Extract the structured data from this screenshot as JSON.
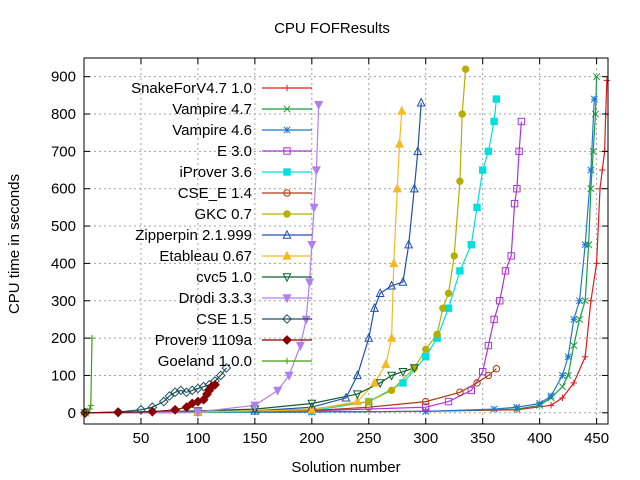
{
  "chart_data": {
    "type": "line",
    "title": "CPU FOFResults",
    "xlabel": "Solution number",
    "ylabel": "CPU time in seconds",
    "xlim": [
      0,
      460
    ],
    "ylim": [
      -30,
      950
    ],
    "xticks": [
      50,
      100,
      150,
      200,
      250,
      300,
      350,
      400,
      450
    ],
    "yticks": [
      0,
      100,
      200,
      300,
      400,
      500,
      600,
      700,
      800,
      900
    ],
    "grid": true,
    "legend_position": "top-left",
    "series": [
      {
        "name": "SnakeForV4.7 1.0",
        "color": "#e41a1c",
        "marker": "plus",
        "x": [
          1,
          100,
          200,
          300,
          380,
          410,
          420,
          430,
          440,
          445,
          450,
          453,
          455,
          457,
          458,
          459
        ],
        "y": [
          0,
          1,
          2,
          4,
          8,
          20,
          40,
          80,
          150,
          300,
          400,
          600,
          650,
          700,
          800,
          890
        ]
      },
      {
        "name": "Vampire 4.7",
        "color": "#1a9d3a",
        "marker": "x",
        "x": [
          1,
          100,
          200,
          300,
          380,
          400,
          410,
          420,
          425,
          430,
          435,
          440,
          443,
          445,
          447,
          449,
          450
        ],
        "y": [
          0,
          1,
          2,
          4,
          10,
          20,
          40,
          70,
          100,
          180,
          250,
          300,
          450,
          600,
          700,
          800,
          900
        ]
      },
      {
        "name": "Vampire 4.6",
        "color": "#1f78d4",
        "marker": "star",
        "x": [
          1,
          100,
          200,
          300,
          360,
          380,
          400,
          410,
          420,
          425,
          430,
          435,
          440,
          445,
          448
        ],
        "y": [
          0,
          1,
          2,
          4,
          10,
          15,
          25,
          45,
          100,
          150,
          250,
          300,
          450,
          650,
          840
        ]
      },
      {
        "name": "E 3.0",
        "color": "#b030e0",
        "marker": "square",
        "x": [
          1,
          100,
          200,
          300,
          320,
          340,
          350,
          355,
          360,
          365,
          370,
          375,
          378,
          380,
          382,
          384
        ],
        "y": [
          0,
          2,
          5,
          15,
          30,
          60,
          110,
          180,
          250,
          300,
          380,
          420,
          560,
          600,
          700,
          780
        ]
      },
      {
        "name": "iProver 3.6",
        "color": "#00e0e0",
        "marker": "filled-square",
        "x": [
          1,
          100,
          200,
          250,
          280,
          300,
          310,
          320,
          330,
          340,
          345,
          350,
          355,
          360,
          362
        ],
        "y": [
          0,
          1,
          5,
          30,
          80,
          150,
          200,
          280,
          380,
          450,
          550,
          650,
          700,
          780,
          840
        ]
      },
      {
        "name": "CSE_E 1.4",
        "color": "#b03a10",
        "marker": "circle",
        "x": [
          1,
          100,
          200,
          250,
          300,
          330,
          345,
          355,
          362
        ],
        "y": [
          0,
          2,
          6,
          15,
          30,
          55,
          80,
          100,
          118
        ]
      },
      {
        "name": "GKC 0.7",
        "color": "#b5b000",
        "marker": "filled-circle",
        "x": [
          1,
          100,
          200,
          250,
          270,
          290,
          300,
          310,
          315,
          320,
          325,
          330,
          332,
          335
        ],
        "y": [
          0,
          2,
          10,
          30,
          60,
          120,
          170,
          210,
          280,
          320,
          420,
          620,
          800,
          920
        ]
      },
      {
        "name": "Zipperpin 2.1.999",
        "color": "#2050b0",
        "marker": "triangle",
        "x": [
          1,
          100,
          150,
          200,
          230,
          240,
          250,
          255,
          260,
          270,
          280,
          285,
          290,
          293,
          296
        ],
        "y": [
          0,
          2,
          5,
          15,
          40,
          100,
          200,
          280,
          320,
          340,
          350,
          450,
          600,
          700,
          830
        ]
      },
      {
        "name": "Etableau 0.67",
        "color": "#f8b820",
        "marker": "filled-triangle",
        "x": [
          1,
          100,
          200,
          240,
          255,
          265,
          270,
          272,
          275,
          277,
          279
        ],
        "y": [
          0,
          2,
          8,
          30,
          80,
          130,
          200,
          400,
          600,
          720,
          808
        ]
      },
      {
        "name": "cvc5 1.0",
        "color": "#106030",
        "marker": "inverted-triangle",
        "x": [
          1,
          100,
          150,
          200,
          240,
          260,
          270,
          280,
          290
        ],
        "y": [
          0,
          5,
          10,
          25,
          50,
          80,
          100,
          110,
          120
        ]
      },
      {
        "name": "Drodi 3.3.3",
        "color": "#b080f0",
        "marker": "filled-inverted-triangle",
        "x": [
          1,
          100,
          150,
          170,
          180,
          190,
          195,
          198,
          200,
          202,
          204,
          206
        ],
        "y": [
          0,
          2,
          20,
          60,
          100,
          180,
          250,
          350,
          450,
          550,
          650,
          825
        ]
      },
      {
        "name": "CSE 1.5",
        "color": "#205060",
        "marker": "diamond",
        "x": [
          1,
          30,
          50,
          60,
          70,
          75,
          80,
          85,
          90,
          95,
          100,
          105,
          110,
          115,
          120,
          125
        ],
        "y": [
          0,
          2,
          8,
          15,
          30,
          45,
          55,
          60,
          55,
          60,
          65,
          70,
          75,
          85,
          100,
          120
        ]
      },
      {
        "name": "Prover9 1109a",
        "color": "#8b0000",
        "marker": "filled-diamond",
        "x": [
          1,
          30,
          60,
          80,
          90,
          95,
          100,
          105,
          108,
          110,
          112,
          115
        ],
        "y": [
          0,
          1,
          3,
          8,
          15,
          25,
          30,
          35,
          50,
          60,
          70,
          75
        ]
      },
      {
        "name": "Goeland 1.0.0",
        "color": "#3ea010",
        "marker": "plus",
        "x": [
          1,
          3,
          5,
          6,
          7
        ],
        "y": [
          0,
          5,
          10,
          20,
          200
        ]
      }
    ]
  }
}
